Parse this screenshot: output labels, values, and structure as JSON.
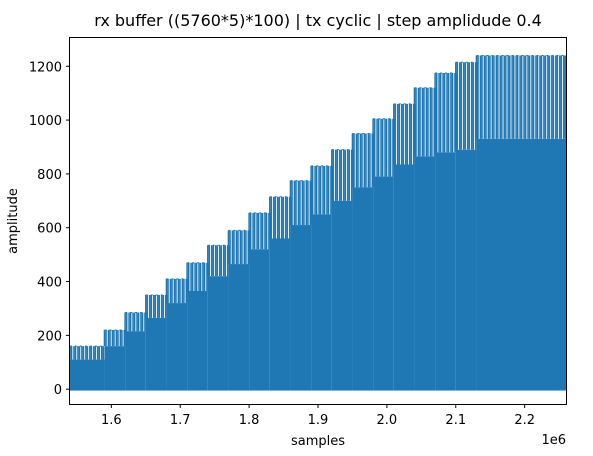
{
  "chart_data": {
    "type": "line",
    "title": "rx buffer ((5760*5)*100) | tx cyclic | step amplidude 0.4",
    "xlabel": "samples",
    "ylabel": "amplitude",
    "x_offset_label": "1e6",
    "xlim": [
      1540000,
      2260000
    ],
    "ylim": [
      -55,
      1305
    ],
    "xticks": [
      1600000,
      1700000,
      1800000,
      1900000,
      2000000,
      2100000,
      2200000
    ],
    "xtick_labels": [
      "1.6",
      "1.7",
      "1.8",
      "1.9",
      "2.0",
      "2.1",
      "2.2"
    ],
    "yticks": [
      0,
      200,
      400,
      600,
      800,
      1000,
      1200
    ],
    "ytick_labels": [
      "0",
      "200",
      "400",
      "600",
      "800",
      "1000",
      "1200"
    ],
    "grid": false,
    "series": [
      {
        "color": "#1f77b4",
        "spike_period_samples": 5760,
        "steps": [
          {
            "start": 1540000,
            "end": 1590000,
            "peak": 160,
            "body": 110
          },
          {
            "start": 1590000,
            "end": 1620000,
            "peak": 220,
            "body": 160
          },
          {
            "start": 1620000,
            "end": 1650000,
            "peak": 285,
            "body": 215
          },
          {
            "start": 1650000,
            "end": 1680000,
            "peak": 350,
            "body": 265
          },
          {
            "start": 1680000,
            "end": 1710000,
            "peak": 410,
            "body": 320
          },
          {
            "start": 1710000,
            "end": 1740000,
            "peak": 470,
            "body": 365
          },
          {
            "start": 1740000,
            "end": 1770000,
            "peak": 535,
            "body": 420
          },
          {
            "start": 1770000,
            "end": 1800000,
            "peak": 590,
            "body": 465
          },
          {
            "start": 1800000,
            "end": 1830000,
            "peak": 655,
            "body": 520
          },
          {
            "start": 1830000,
            "end": 1860000,
            "peak": 715,
            "body": 560
          },
          {
            "start": 1860000,
            "end": 1890000,
            "peak": 775,
            "body": 610
          },
          {
            "start": 1890000,
            "end": 1920000,
            "peak": 830,
            "body": 650
          },
          {
            "start": 1920000,
            "end": 1950000,
            "peak": 890,
            "body": 700
          },
          {
            "start": 1950000,
            "end": 1980000,
            "peak": 950,
            "body": 750
          },
          {
            "start": 1980000,
            "end": 2010000,
            "peak": 1005,
            "body": 790
          },
          {
            "start": 2010000,
            "end": 2040000,
            "peak": 1060,
            "body": 835
          },
          {
            "start": 2040000,
            "end": 2070000,
            "peak": 1120,
            "body": 865
          },
          {
            "start": 2070000,
            "end": 2100000,
            "peak": 1175,
            "body": 880
          },
          {
            "start": 2100000,
            "end": 2130000,
            "peak": 1215,
            "body": 890
          },
          {
            "start": 2130000,
            "end": 2260000,
            "peak": 1240,
            "body": 930
          }
        ]
      }
    ]
  }
}
